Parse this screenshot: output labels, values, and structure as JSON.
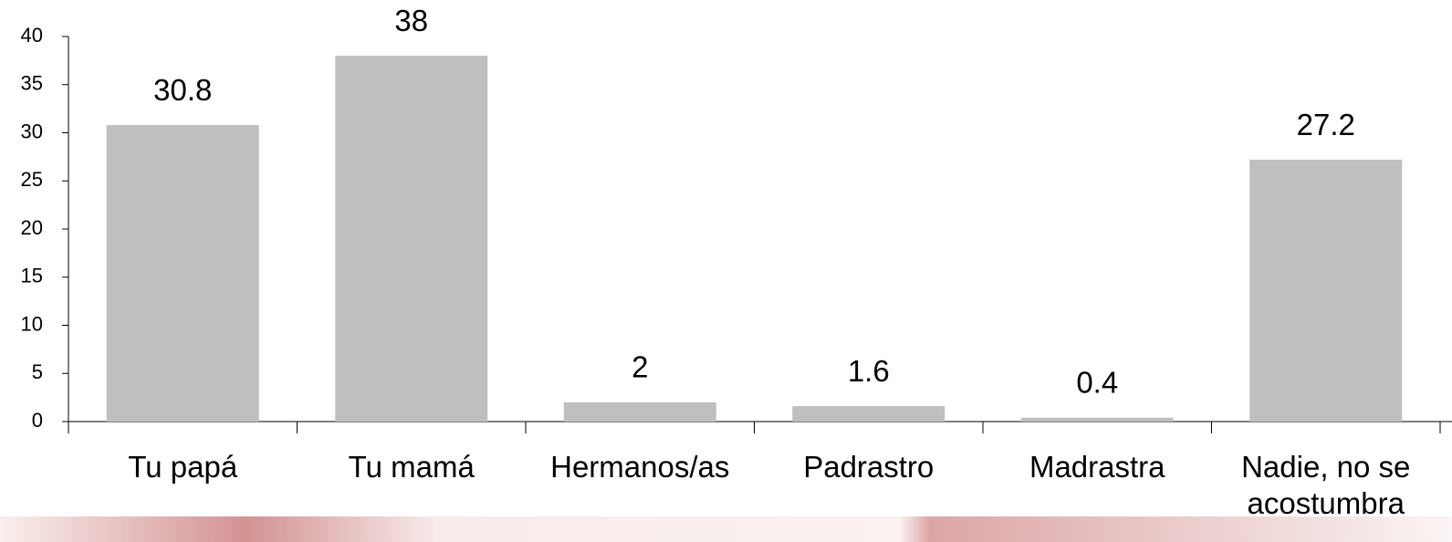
{
  "chart_data": {
    "type": "bar",
    "categories": [
      "Tu papá",
      "Tu mamá",
      "Hermanos/as",
      "Padrastro",
      "Madrastra",
      "Nadie, no se acostumbra"
    ],
    "values": [
      30.8,
      38,
      2,
      1.6,
      0.4,
      27.2
    ],
    "color": "#bfbfbf",
    "ylim": [
      0,
      40
    ],
    "yticks": [
      0,
      5,
      10,
      15,
      20,
      25,
      30,
      35,
      40
    ]
  }
}
